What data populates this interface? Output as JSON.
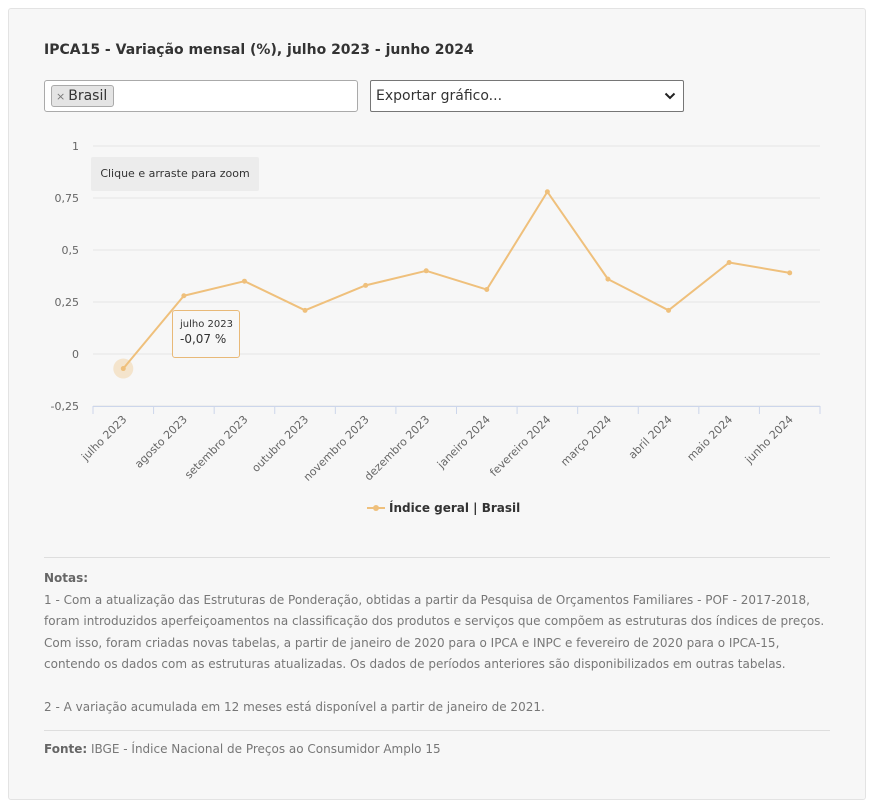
{
  "header": {
    "title": "IPCA15 - Variação mensal (%), julho 2023 - junho 2024"
  },
  "selector": {
    "tag_label": "Brasil",
    "remove_symbol": "×"
  },
  "export": {
    "label": "Exportar gráfico..."
  },
  "zoom_hint": "Clique e arraste para zoom",
  "tooltip": {
    "label": "julho 2023",
    "value": "-0,07 %"
  },
  "legend": {
    "label": "Índice geral | Brasil"
  },
  "notes": {
    "heading": "Notas:",
    "note1": "1 - Com a atualização das Estruturas de Ponderação, obtidas a partir da Pesquisa de Orçamentos Familiares - POF - 2017-2018, foram introduzidos aperfeiçoamentos na classificação dos produtos e serviços que compõem as estruturas dos índices de preços. Com isso, foram criadas novas tabelas, a partir de janeiro de 2020 para o IPCA e INPC e fevereiro de 2020 para o IPCA-15, contendo os dados com as estruturas atualizadas. Os dados de períodos anteriores são disponibilizados em outras tabelas.",
    "note2": "2 - A variação acumulada em 12 meses está disponível a partir de janeiro de 2021."
  },
  "source": {
    "label": "Fonte:",
    "text": "IBGE - Índice Nacional de Preços ao Consumidor Amplo 15"
  },
  "colors": {
    "series": "#efc07c",
    "grid": "#e6e6e6",
    "axis": "#ccd6eb",
    "tooltip_border": "#e8b978"
  },
  "chart_data": {
    "type": "line",
    "title": "IPCA15 - Variação mensal (%), julho 2023 - junho 2024",
    "categories": [
      "julho 2023",
      "agosto 2023",
      "setembro 2023",
      "outubro 2023",
      "novembro 2023",
      "dezembro 2023",
      "janeiro 2024",
      "fevereiro 2024",
      "março 2024",
      "abril 2024",
      "maio 2024",
      "junho 2024"
    ],
    "series": [
      {
        "name": "Índice geral | Brasil",
        "values": [
          -0.07,
          0.28,
          0.35,
          0.21,
          0.33,
          0.4,
          0.31,
          0.78,
          0.36,
          0.21,
          0.44,
          0.39
        ]
      }
    ],
    "yticks": [
      1,
      0.75,
      0.5,
      0.25,
      0,
      -0.25
    ],
    "ytick_labels": [
      "1",
      "0,75",
      "0,5",
      "0,25",
      "0",
      "-0,25"
    ],
    "ylim": [
      -0.25,
      1
    ],
    "grid": true,
    "legend_position": "bottom-center",
    "highlighted_index": 0
  }
}
